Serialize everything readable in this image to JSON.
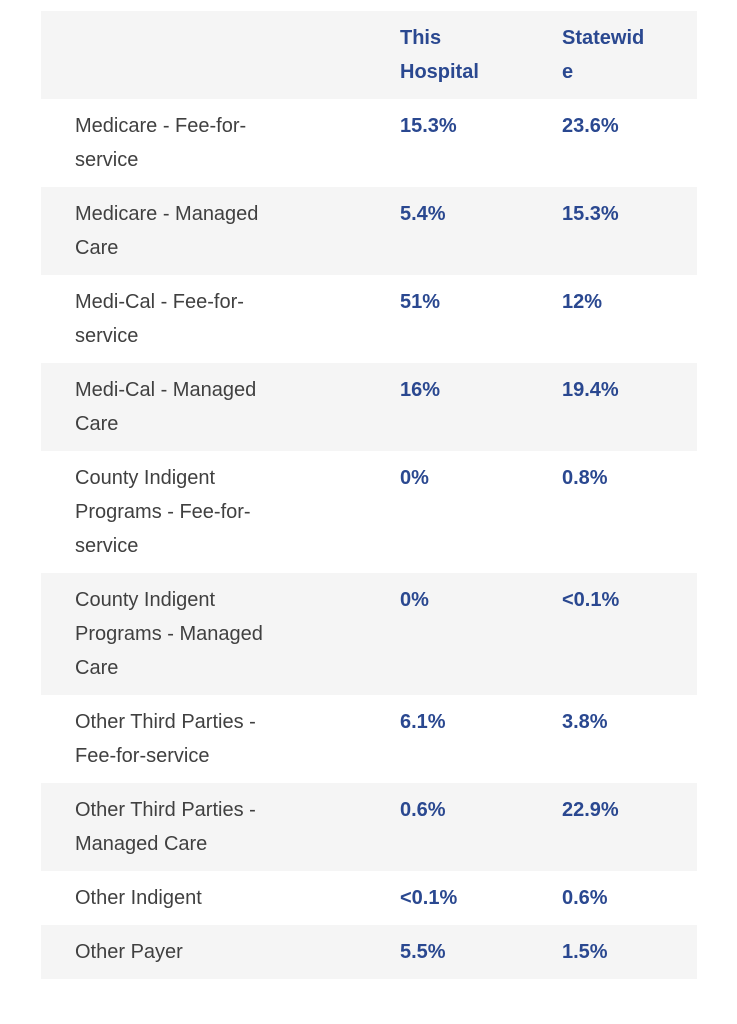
{
  "page": {
    "background": "#ffffff"
  },
  "table": {
    "header": {
      "col_label": "",
      "col_this_hospital": "This Hospital",
      "col_statewide": "Statewide"
    },
    "rows": [
      {
        "label": "Medicare - Fee-for-service",
        "this_hospital": "15.3%",
        "statewide": "23.6%"
      },
      {
        "label": "Medicare - Managed Care",
        "this_hospital": "5.4%",
        "statewide": "15.3%"
      },
      {
        "label": "Medi-Cal - Fee-for-service",
        "this_hospital": "51%",
        "statewide": "12%"
      },
      {
        "label": "Medi-Cal - Managed Care",
        "this_hospital": "16%",
        "statewide": "19.4%"
      },
      {
        "label": "County Indigent Programs - Fee-for-service",
        "this_hospital": "0%",
        "statewide": "0.8%"
      },
      {
        "label": "County Indigent Programs - Managed Care",
        "this_hospital": "0%",
        "statewide": "<0.1%"
      },
      {
        "label": "Other Third Parties - Fee-for-service",
        "this_hospital": "6.1%",
        "statewide": "3.8%"
      },
      {
        "label": "Other Third Parties - Managed Care",
        "this_hospital": "0.6%",
        "statewide": "22.9%"
      },
      {
        "label": "Other Indigent",
        "this_hospital": "<0.1%",
        "statewide": "0.6%"
      },
      {
        "label": "Other Payer",
        "this_hospital": "5.5%",
        "statewide": "1.5%"
      }
    ],
    "colors": {
      "accent_blue": "#2a4890",
      "label_gray": "#404040",
      "stripe_gray": "#f5f5f5",
      "page_background": "#ffffff"
    }
  }
}
